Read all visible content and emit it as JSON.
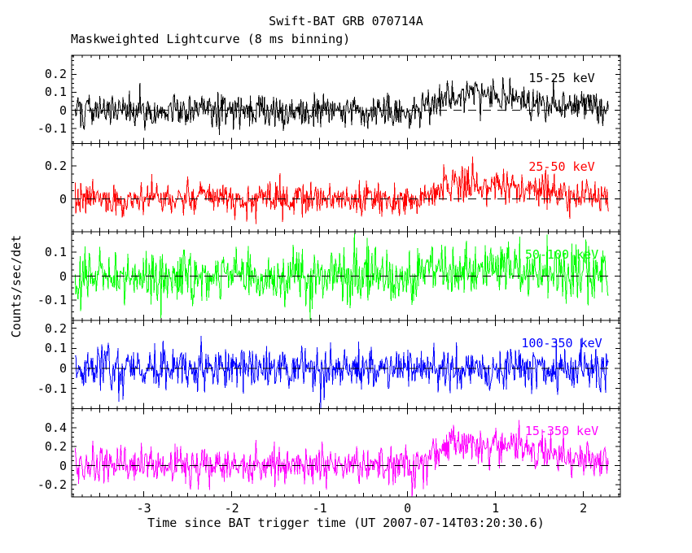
{
  "chart_data": {
    "type": "line",
    "title": "Swift-BAT GRB 070714A",
    "subtitle": "Maskweighted Lightcurve (8 ms binning)",
    "xlabel": "Time since BAT trigger time (UT 2007-07-14T03:20:30.6)",
    "ylabel": "Counts/sec/det",
    "xlim": [
      -3.82,
      2.42
    ],
    "x_data_range": [
      -3.78,
      2.285
    ],
    "bin_width_s": 0.008,
    "x_major_ticks": [
      -3,
      -2,
      -1,
      0,
      1,
      2
    ],
    "x_major_tick_labels": [
      "-3",
      "-2",
      "-1",
      "0",
      "1",
      "2"
    ],
    "x_minor_tick_step": 0.1,
    "grid": false,
    "legend_position": "in-panel-right",
    "zero_line": {
      "value": 0,
      "style": "dashed",
      "color": "#000000"
    },
    "panels": [
      {
        "label": "15-25 keV",
        "color": "#000000",
        "ylim": [
          -0.185,
          0.305
        ],
        "yticks": [
          -0.1,
          0,
          0.1,
          0.2
        ],
        "ytick_labels": [
          "-0.1",
          "0",
          "0.1",
          "0.2"
        ],
        "y_minor_tick_step": 0.025,
        "noise_sigma": 0.047,
        "burst_peak_amplitude": 0.085,
        "burst_shape": {
          "t_rise_start": 0.05,
          "t_plateau_start": 0.45,
          "t_plateau_end": 0.95,
          "decay_tau": 0.9
        },
        "seed": 101
      },
      {
        "label": "25-50 keV",
        "color": "#ff0000",
        "ylim": [
          -0.2,
          0.335
        ],
        "yticks": [
          0,
          0.2
        ],
        "ytick_labels": [
          "0",
          "0.2"
        ],
        "y_minor_tick_step": 0.05,
        "noise_sigma": 0.05,
        "burst_peak_amplitude": 0.09,
        "burst_shape": {
          "t_rise_start": 0.1,
          "t_plateau_start": 0.5,
          "t_plateau_end": 1.0,
          "decay_tau": 0.7
        },
        "seed": 202
      },
      {
        "label": "50-100 keV",
        "color": "#00ff00",
        "ylim": [
          -0.185,
          0.185
        ],
        "yticks": [
          -0.1,
          0,
          0.1
        ],
        "ytick_labels": [
          "-0.1",
          "0",
          "0.1"
        ],
        "y_minor_tick_step": 0.025,
        "noise_sigma": 0.053,
        "burst_peak_amplitude": 0.028,
        "burst_shape": {
          "t_rise_start": 0.05,
          "t_plateau_start": 0.5,
          "t_plateau_end": 1.0,
          "decay_tau": 0.8
        },
        "seed": 303
      },
      {
        "label": "100-350 keV",
        "color": "#0000ff",
        "ylim": [
          -0.2,
          0.24
        ],
        "yticks": [
          -0.1,
          0,
          0.1,
          0.2
        ],
        "ytick_labels": [
          "-0.1",
          "0",
          "0.1",
          "0.2"
        ],
        "y_minor_tick_step": 0.025,
        "noise_sigma": 0.055,
        "burst_peak_amplitude": 0.0,
        "burst_shape": {
          "t_rise_start": 0.05,
          "t_plateau_start": 0.5,
          "t_plateau_end": 1.0,
          "decay_tau": 0.8
        },
        "seed": 404
      },
      {
        "label": "15-350 keV",
        "color": "#ff00ff",
        "ylim": [
          -0.33,
          0.6
        ],
        "yticks": [
          -0.2,
          0,
          0.2,
          0.4
        ],
        "ytick_labels": [
          "-0.2",
          "0",
          "0.2",
          "0.4"
        ],
        "y_minor_tick_step": 0.05,
        "noise_sigma": 0.105,
        "burst_peak_amplitude": 0.22,
        "burst_shape": {
          "t_rise_start": 0.05,
          "t_plateau_start": 0.5,
          "t_plateau_end": 1.0,
          "decay_tau": 0.9
        },
        "seed": 505
      }
    ]
  }
}
